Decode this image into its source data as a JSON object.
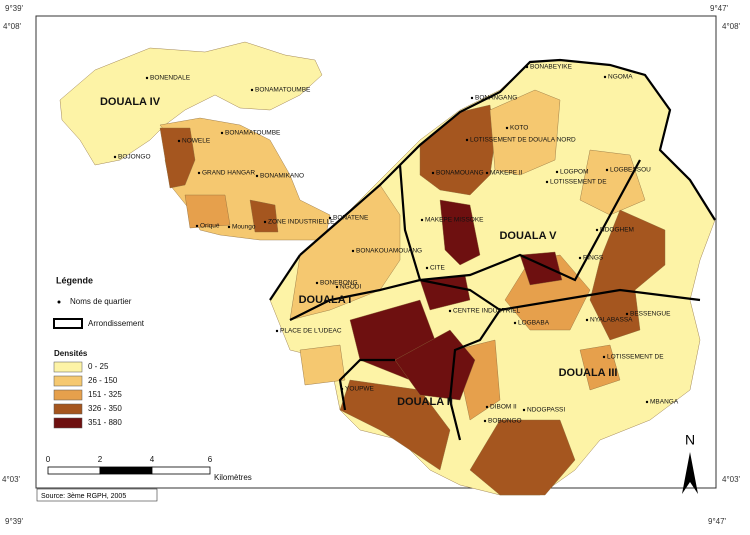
{
  "corners": [
    "9°39'",
    "4°08'",
    "9°47'",
    "4°08'",
    "4°03'",
    "9°39'",
    "4°03'",
    "9°47'"
  ],
  "districts": [
    "DOUALA IV",
    "DOUALA V",
    "DOUALA I",
    "DOUALA II",
    "DOUALA III"
  ],
  "neighborhoods": [
    "BONENDALE",
    "BONAMATOUMBE",
    "BONAMATOUMBE",
    "NOWELE",
    "BOJONGO",
    "GRAND HANGAR",
    "BONAMIKANO",
    "ZONE INDUSTRIELLE",
    "Oriqué",
    "Moungo",
    "BONABEYIKE",
    "NGOMA",
    "BONANGANG",
    "KOTO",
    "LOTISSEMENT DE DOUALA NORD",
    "BONAMOUANG",
    "MAKEPE II",
    "LOGPOM",
    "LOTISSEMENT DE",
    "LOGBESSOU",
    "BONATENE",
    "MAKEPE MISSOKE",
    "NDOGHEM",
    "BONAKOUAMOUANG",
    "CITE",
    "PINGS",
    "BONEBONG",
    "NGODI",
    "CENTRE INDUSTRIEL",
    "BESSENGUE",
    "NYALABASSA",
    "LOGBABA",
    "PLACE DE L'UDEAC",
    "LOTISSEMENT DE",
    "YOUPWE",
    "DIBOM II",
    "NDOGPASSI",
    "MBANGA",
    "BOBONGO"
  ],
  "legend": {
    "title": "Légende",
    "point_label": "Noms de quartier",
    "boundary_label": "Arrondissement",
    "density_title": "Densités",
    "classes": [
      {
        "label": "0 - 25",
        "color": "#fdf3a6"
      },
      {
        "label": "26 - 150",
        "color": "#f5c870"
      },
      {
        "label": "151 - 325",
        "color": "#e6a04c"
      },
      {
        "label": "326 - 350",
        "color": "#a5561f"
      },
      {
        "label": "351 - 880",
        "color": "#6e1010"
      }
    ]
  },
  "scale": {
    "ticks": [
      "0",
      "2",
      "4",
      "6"
    ],
    "unit": "Kilomètres"
  },
  "north": "N",
  "source": "Source: 3ème RGPH, 2005"
}
